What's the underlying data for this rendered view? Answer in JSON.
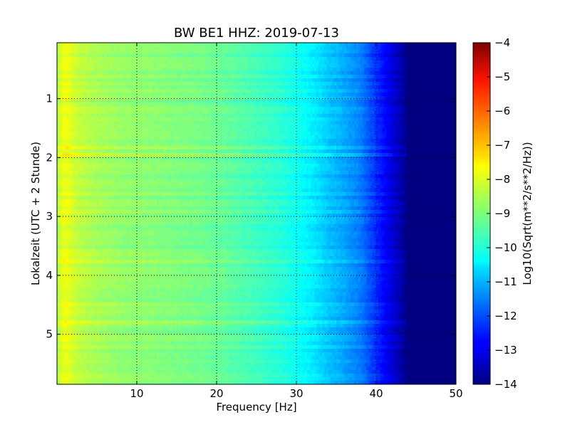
{
  "chart_data": {
    "type": "heatmap",
    "title": "BW BE1 HHZ: 2019-07-13",
    "xlabel": "Frequency [Hz]",
    "ylabel": "Lokalzeit (UTC + 2 Stunde)",
    "xlim": [
      0,
      50
    ],
    "ylim": [
      5.85,
      0.05
    ],
    "x_ticks": [
      10,
      20,
      30,
      40,
      50
    ],
    "y_ticks": [
      1,
      2,
      3,
      4,
      5
    ],
    "grid": true,
    "colormap": "jet",
    "colorbar": {
      "label": "Log10(Sqrt(m**2/s**2/Hz))",
      "range": [
        -14,
        -4
      ],
      "ticks": [
        -14,
        -13,
        -12,
        -11,
        -10,
        -9,
        -8,
        -7,
        -6,
        -5,
        -4
      ]
    },
    "spectrum_profile": {
      "frequency_hz": [
        0,
        0.5,
        1,
        1.5,
        2,
        3,
        5,
        8,
        10,
        12,
        15,
        18,
        20,
        22,
        25,
        28,
        30,
        32,
        34,
        36,
        38,
        39,
        40,
        41,
        42,
        43,
        44,
        45,
        50
      ],
      "log10_amplitude": [
        -8.6,
        -8.1,
        -7.9,
        -8.0,
        -8.2,
        -8.4,
        -8.6,
        -8.8,
        -8.85,
        -8.9,
        -9.0,
        -9.1,
        -9.2,
        -9.35,
        -9.6,
        -9.85,
        -10.1,
        -10.4,
        -10.8,
        -11.1,
        -11.5,
        -11.9,
        -12.3,
        -12.7,
        -13.1,
        -13.5,
        -14.0,
        -14.0,
        -14.0
      ]
    }
  }
}
